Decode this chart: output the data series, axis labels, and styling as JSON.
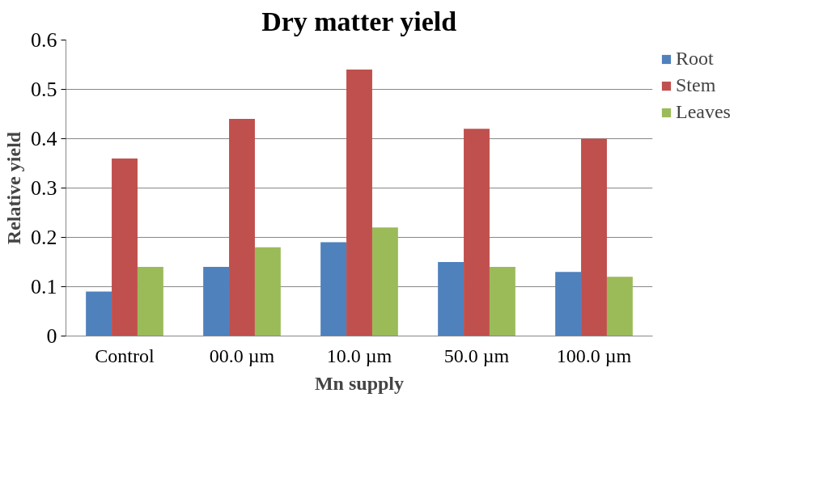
{
  "chart_data": {
    "type": "bar",
    "title": "Dry matter yield",
    "xlabel": "Mn supply",
    "ylabel": "Relative yield",
    "categories": [
      "Control",
      "00.0 µm",
      "10.0 µm",
      "50.0 µm",
      "100.0 µm"
    ],
    "series": [
      {
        "name": "Root",
        "color": "#4f81bd",
        "values": [
          0.09,
          0.14,
          0.19,
          0.15,
          0.13
        ]
      },
      {
        "name": "Stem",
        "color": "#c0504d",
        "values": [
          0.36,
          0.44,
          0.54,
          0.42,
          0.4
        ]
      },
      {
        "name": "Leaves",
        "color": "#9bbb59",
        "values": [
          0.14,
          0.18,
          0.22,
          0.14,
          0.12
        ]
      }
    ],
    "ylim": [
      0,
      0.6
    ],
    "yticks": [
      0,
      {
        "value": 0.1,
        "label": "0.1"
      },
      {
        "value": 0.2,
        "label": "0.2"
      },
      {
        "value": 0.3,
        "label": "0.3"
      },
      {
        "value": 0.4,
        "label": "0.4"
      },
      {
        "value": 0.5,
        "label": "0.5"
      },
      {
        "value": 0.6,
        "label": "0.6"
      }
    ],
    "grid": "y",
    "legend": "right"
  }
}
